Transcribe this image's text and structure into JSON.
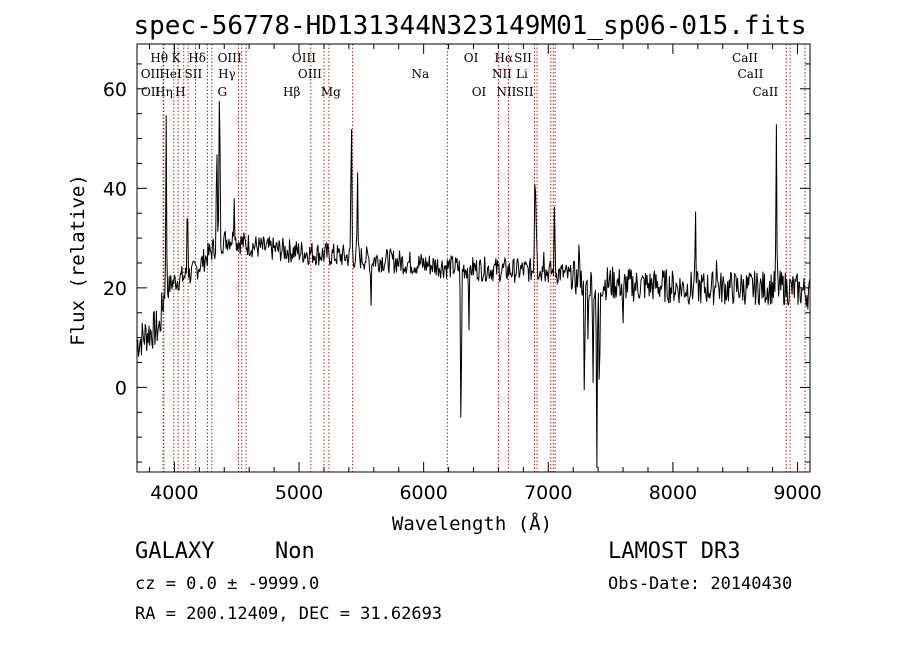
{
  "chart_data": {
    "type": "line",
    "title": "spec-56778-HD131344N323149M01_sp06-015.fits",
    "xlabel": "Wavelength (Å)",
    "ylabel": "Flux (relative)",
    "xlim": [
      3700,
      9100
    ],
    "ylim": [
      -17,
      69
    ],
    "xticks": [
      4000,
      5000,
      6000,
      7000,
      8000,
      9000
    ],
    "yticks": [
      0,
      20,
      40,
      60
    ],
    "xtick_labels": [
      "4000",
      "5000",
      "6000",
      "7000",
      "8000",
      "9000"
    ],
    "ytick_labels": [
      "0",
      "20",
      "40",
      "60"
    ],
    "continuum": [
      [
        3700,
        9
      ],
      [
        3790,
        11
      ],
      [
        3880,
        12
      ],
      [
        3920,
        19
      ],
      [
        3980,
        21
      ],
      [
        4050,
        22
      ],
      [
        4150,
        23
      ],
      [
        4250,
        26
      ],
      [
        4350,
        29
      ],
      [
        4450,
        30
      ],
      [
        4550,
        29
      ],
      [
        4700,
        28
      ],
      [
        4900,
        27.5
      ],
      [
        5100,
        27
      ],
      [
        5300,
        26.5
      ],
      [
        5500,
        26
      ],
      [
        5700,
        25.5
      ],
      [
        5900,
        25
      ],
      [
        6100,
        24.5
      ],
      [
        6300,
        24
      ],
      [
        6500,
        23.8
      ],
      [
        6700,
        23.5
      ],
      [
        6900,
        23.5
      ],
      [
        7100,
        23
      ],
      [
        7300,
        21
      ],
      [
        7500,
        21
      ],
      [
        7700,
        20.5
      ],
      [
        7900,
        20.5
      ],
      [
        8100,
        20
      ],
      [
        8300,
        20
      ],
      [
        8500,
        20
      ],
      [
        8700,
        20
      ],
      [
        8900,
        20
      ],
      [
        9100,
        19
      ]
    ],
    "features": [
      [
        3934,
        33
      ],
      [
        4105,
        17
      ],
      [
        4340,
        20
      ],
      [
        4362,
        35
      ],
      [
        4480,
        10
      ],
      [
        5420,
        30
      ],
      [
        5470,
        15
      ],
      [
        5577,
        -8
      ],
      [
        6300,
        -37
      ],
      [
        6364,
        -10
      ],
      [
        6890,
        10
      ],
      [
        6896,
        18
      ],
      [
        6906,
        10
      ],
      [
        6964,
        6
      ],
      [
        7050,
        13
      ],
      [
        7250,
        8
      ],
      [
        7290,
        -28
      ],
      [
        7320,
        -10
      ],
      [
        7360,
        -18
      ],
      [
        7390,
        -40
      ],
      [
        7410,
        -25
      ],
      [
        7600,
        -10
      ],
      [
        8180,
        14
      ],
      [
        8350,
        8
      ],
      [
        8830,
        30
      ]
    ],
    "lines": [
      {
        "name": "OII",
        "wavelength": 3727,
        "row": 2
      },
      {
        "name": "OII",
        "wavelength": 3729,
        "row": 3
      },
      {
        "name": "Hθ",
        "wavelength": 3798,
        "row": 1
      },
      {
        "name": "Hη",
        "wavelength": 3835,
        "row": 3
      },
      {
        "name": "HeI",
        "wavelength": 3889,
        "row": 2
      },
      {
        "name": "K",
        "wavelength": 3934,
        "row": 1
      },
      {
        "name": "H",
        "wavelength": 3968,
        "row": 3
      },
      {
        "name": "Hδ",
        "wavelength": 4102,
        "row": 1
      },
      {
        "name": "SII",
        "wavelength": 4072,
        "row": 2
      },
      {
        "name": "OIII",
        "wavelength": 4363,
        "row": 1
      },
      {
        "name": "Hγ",
        "wavelength": 4341,
        "row": 2
      },
      {
        "name": "G",
        "wavelength": 4304,
        "row": 3
      },
      {
        "name": "OIII",
        "wavelength": 4959,
        "row": 1
      },
      {
        "name": "OIII",
        "wavelength": 5007,
        "row": 2
      },
      {
        "name": "Hβ",
        "wavelength": 4861,
        "row": 3
      },
      {
        "name": "Mg",
        "wavelength": 5175,
        "row": 3
      },
      {
        "name": "Na",
        "wavelength": 5893,
        "row": 2
      },
      {
        "name": "OI",
        "wavelength": 6300,
        "row": 1
      },
      {
        "name": "OI",
        "wavelength": 6364,
        "row": 3
      },
      {
        "name": "Hα",
        "wavelength": 6563,
        "row": 1
      },
      {
        "name": "NII",
        "wavelength": 6548,
        "row": 2
      },
      {
        "name": "NII",
        "wavelength": 6584,
        "row": 3
      },
      {
        "name": "SII",
        "wavelength": 6717,
        "row": 1
      },
      {
        "name": "Li",
        "wavelength": 6708,
        "row": 2
      },
      {
        "name": "SII",
        "wavelength": 6731,
        "row": 3
      },
      {
        "name": "CaII",
        "wavelength": 8498,
        "row": 1
      },
      {
        "name": "CaII",
        "wavelength": 8542,
        "row": 2
      },
      {
        "name": "CaII",
        "wavelength": 8662,
        "row": 3
      }
    ],
    "line_marker_wavelengths": [
      3910,
      3915,
      3995,
      4030,
      4075,
      4110,
      4170,
      4265,
      4300,
      4515,
      4540,
      4575,
      5095,
      5200,
      5240,
      5430,
      6190,
      6600,
      6680,
      6890,
      6910,
      7020,
      7040,
      7055,
      8910,
      8940,
      9060
    ]
  },
  "info": {
    "object_class": "GALAXY",
    "subclass": "Non",
    "survey": "LAMOST DR3",
    "cz": "cz = 0.0 ± -9999.0",
    "obs_date": "Obs-Date: 20140430",
    "coordinates": "RA = 200.12409, DEC =  31.62693"
  },
  "colors": {
    "spectrum": "#000000",
    "line_marker": "#b02020",
    "axis": "#000000"
  }
}
